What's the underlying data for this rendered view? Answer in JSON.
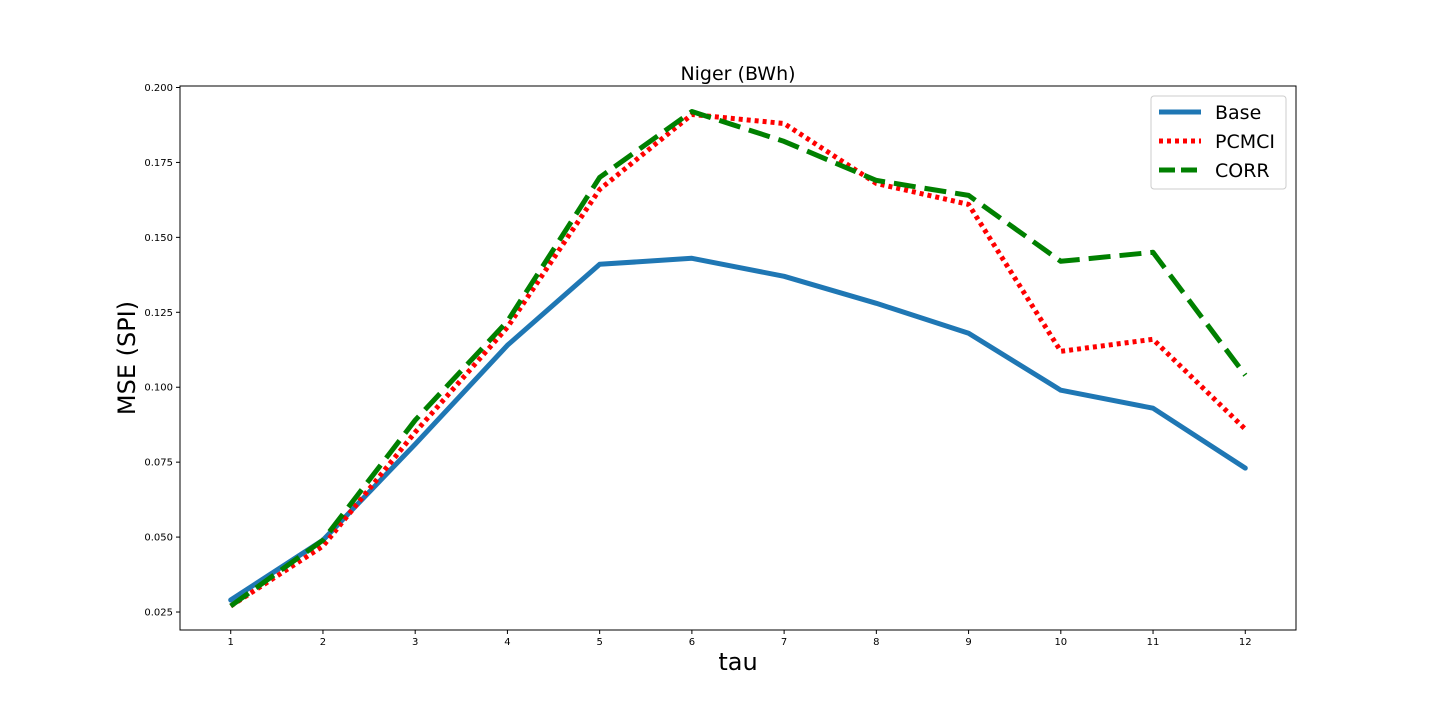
{
  "chart_data": {
    "type": "line",
    "title": "Niger (BWh)",
    "xlabel": "tau",
    "ylabel": "MSE (SPI)",
    "x": [
      1,
      2,
      3,
      4,
      5,
      6,
      7,
      8,
      9,
      10,
      11,
      12
    ],
    "xticks": [
      "1",
      "2",
      "3",
      "4",
      "5",
      "6",
      "7",
      "8",
      "9",
      "10",
      "11",
      "12"
    ],
    "yticks": [
      "0.025",
      "0.050",
      "0.075",
      "0.100",
      "0.125",
      "0.150",
      "0.175",
      "0.200"
    ],
    "ytick_values": [
      0.025,
      0.05,
      0.075,
      0.1,
      0.125,
      0.15,
      0.175,
      0.2
    ],
    "xlim": [
      0.45,
      12.55
    ],
    "ylim": [
      0.019,
      0.2005
    ],
    "grid": false,
    "legend_position": "top-right",
    "series": [
      {
        "name": "Base",
        "color": "#1f77b4",
        "style": "solid",
        "values": [
          0.029,
          0.049,
          0.081,
          0.114,
          0.141,
          0.143,
          0.137,
          0.128,
          0.118,
          0.099,
          0.093,
          0.073
        ]
      },
      {
        "name": "PCMCI",
        "color": "#ff0000",
        "style": "dotted",
        "values": [
          0.027,
          0.047,
          0.085,
          0.12,
          0.166,
          0.191,
          0.188,
          0.168,
          0.161,
          0.112,
          0.116,
          0.086
        ]
      },
      {
        "name": "CORR",
        "color": "#008000",
        "style": "dashed",
        "values": [
          0.027,
          0.049,
          0.089,
          0.122,
          0.17,
          0.192,
          0.182,
          0.169,
          0.164,
          0.142,
          0.145,
          0.104
        ]
      }
    ]
  }
}
